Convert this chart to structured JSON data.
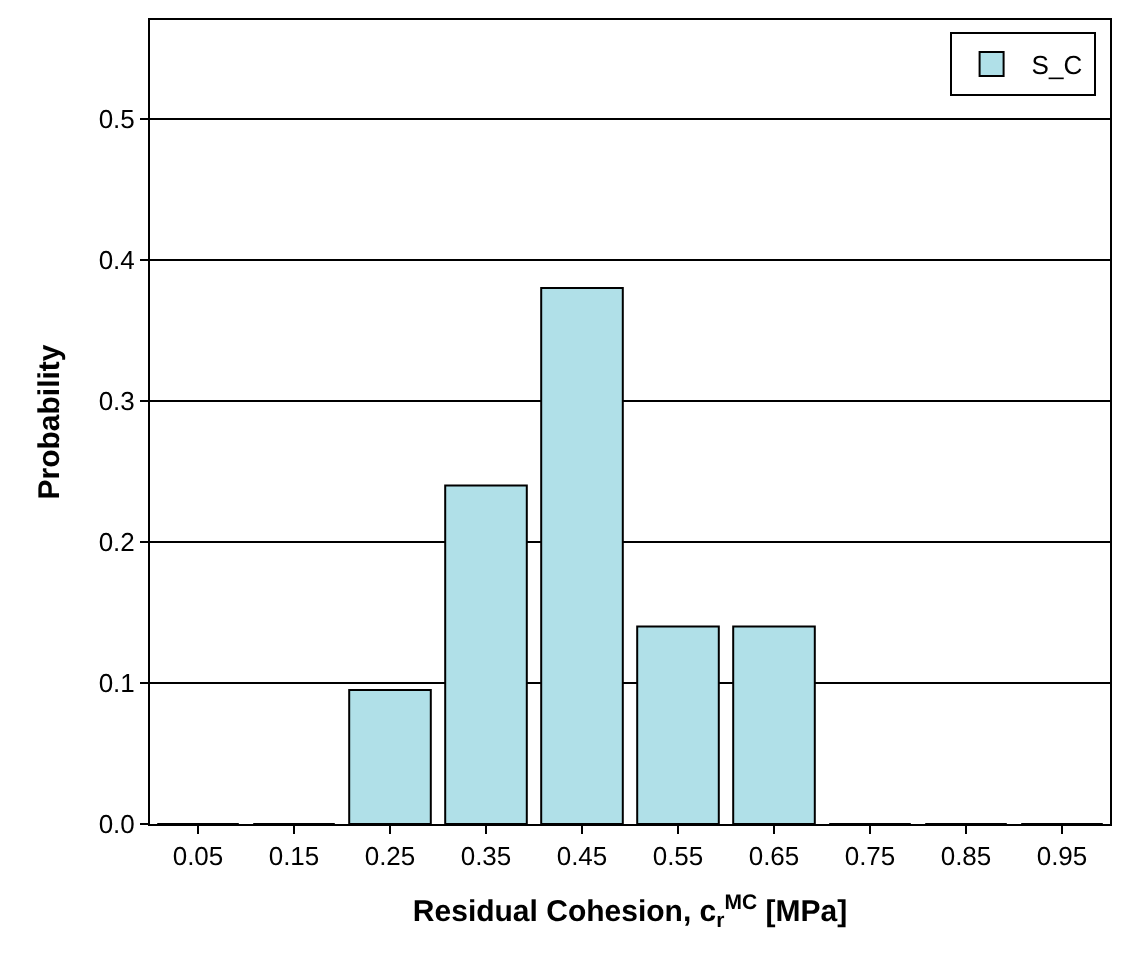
{
  "chart_data": {
    "type": "bar",
    "xlabel": "Residual Cohesion, c$_{r}$$^{MC}$ [MPa]",
    "ylabel": "Probability",
    "categories": [
      "0.05",
      "0.15",
      "0.25",
      "0.35",
      "0.45",
      "0.55",
      "0.65",
      "0.75",
      "0.85",
      "0.95"
    ],
    "series": [
      {
        "name": "S_C",
        "color": "#b0e0e8",
        "values": [
          0,
          0,
          0.095,
          0.24,
          0.38,
          0.14,
          0.14,
          0,
          0,
          0
        ]
      }
    ],
    "ylim": [
      0,
      0.57
    ],
    "yticks": [
      {
        "value": 0,
        "label": "0.0"
      },
      0.1,
      0.2,
      0.3,
      0.4,
      0.5
    ],
    "grid": "y",
    "legend": "top right"
  }
}
